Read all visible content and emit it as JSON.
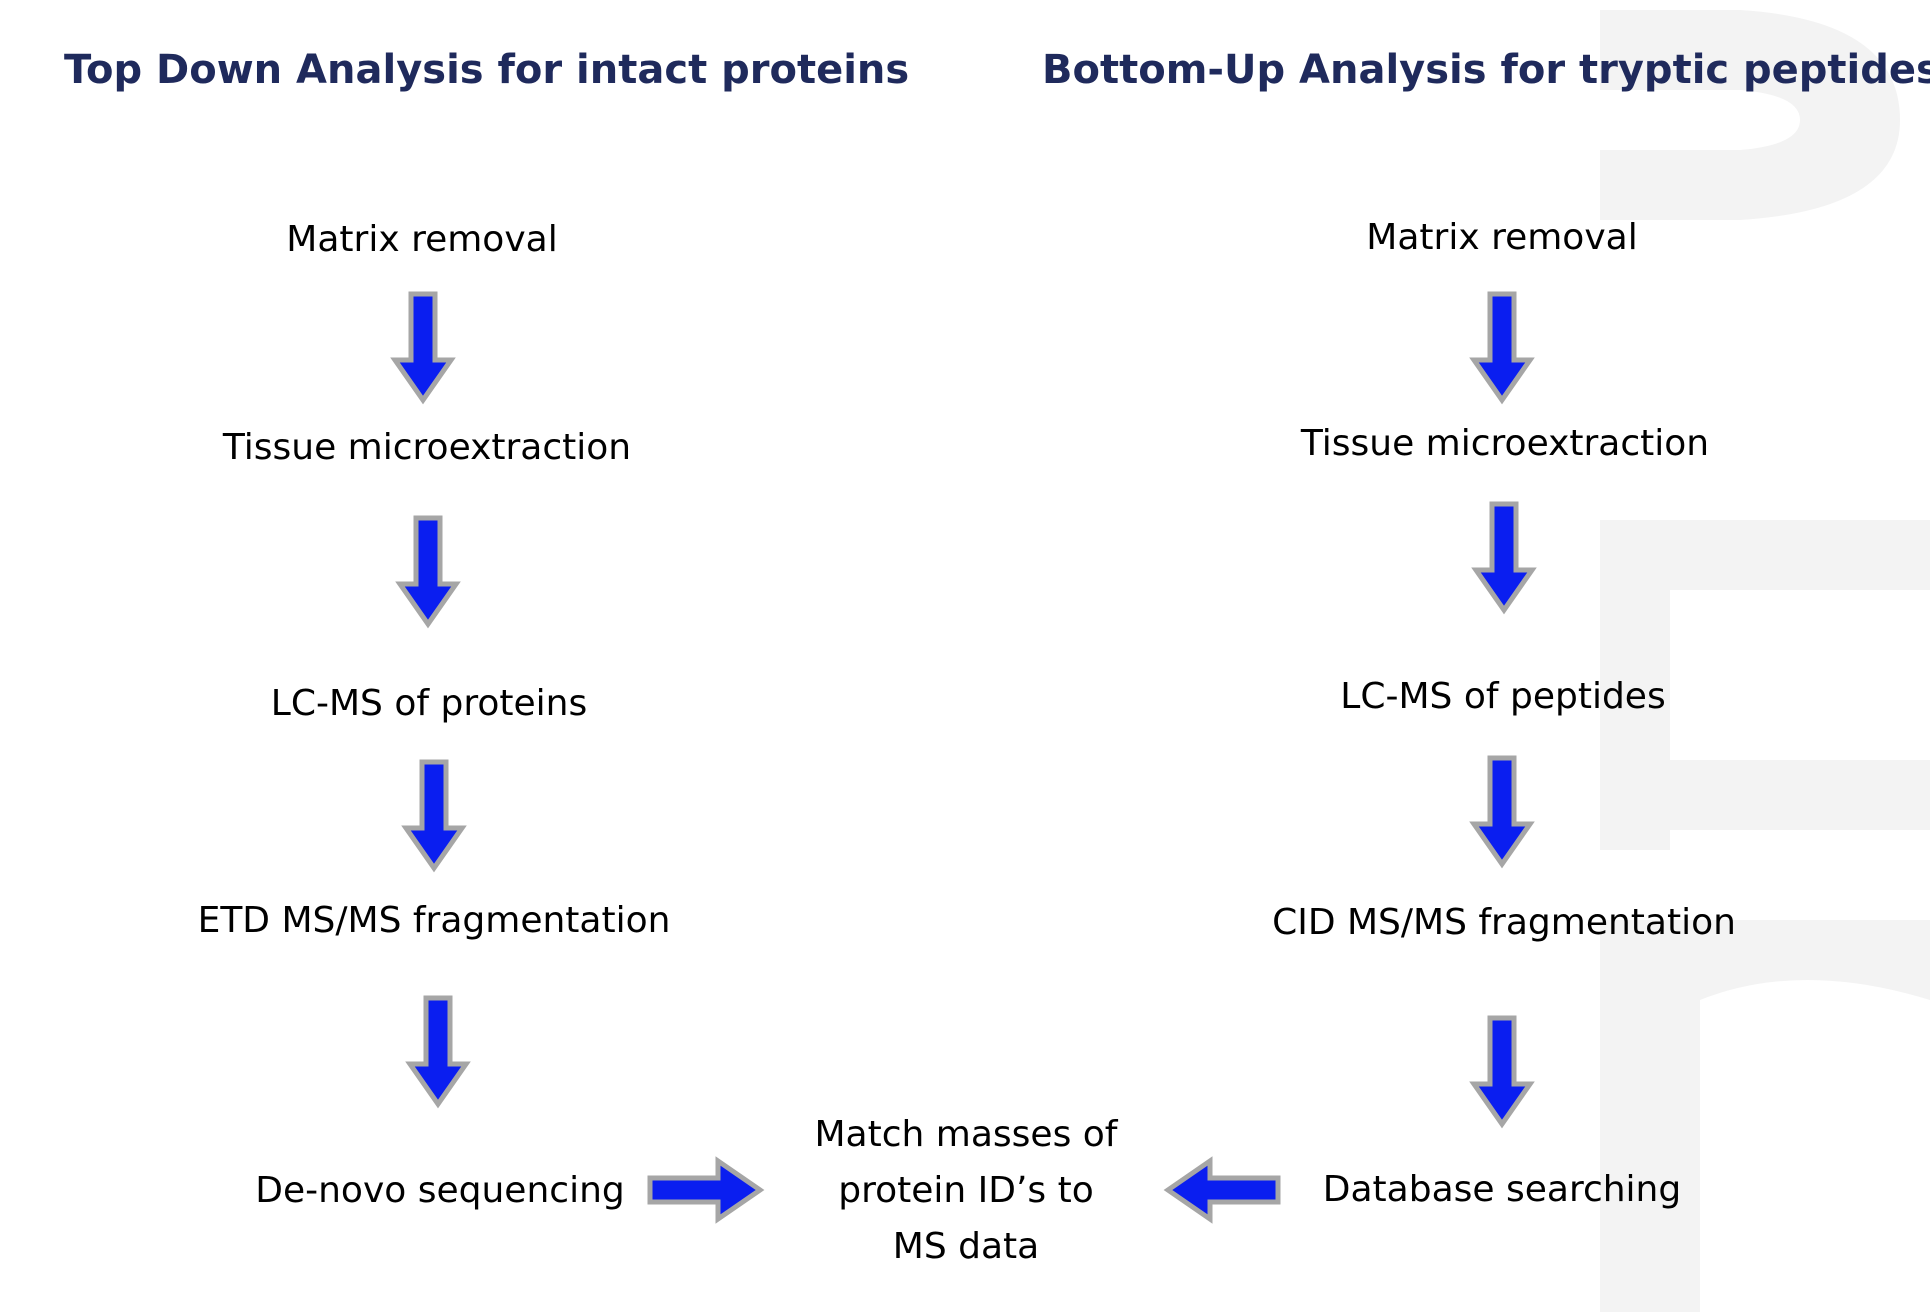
{
  "colors": {
    "heading": "#1f2a5c",
    "text": "#000000",
    "arrow_fill": "#0a1ef0",
    "arrow_outline": "#a6a6a6",
    "watermark": "#f3f3f3"
  },
  "top_down": {
    "heading": "Top Down Analysis for intact proteins",
    "steps": [
      "Matrix removal",
      "Tissue microextraction",
      "LC-MS of proteins",
      "ETD MS/MS fragmentation",
      "De-novo sequencing"
    ]
  },
  "bottom_up": {
    "heading": "Bottom-Up Analysis for tryptic peptides",
    "steps": [
      "Matrix removal",
      "Tissue microextraction",
      "LC-MS of peptides",
      "CID MS/MS fragmentation",
      "Database searching"
    ]
  },
  "result": {
    "line1": "Match masses of",
    "line2": "protein ID’s  to",
    "line3": "MS data"
  },
  "arrows": {
    "down": "arrow-down-icon",
    "right": "arrow-right-icon",
    "left": "arrow-left-icon"
  }
}
